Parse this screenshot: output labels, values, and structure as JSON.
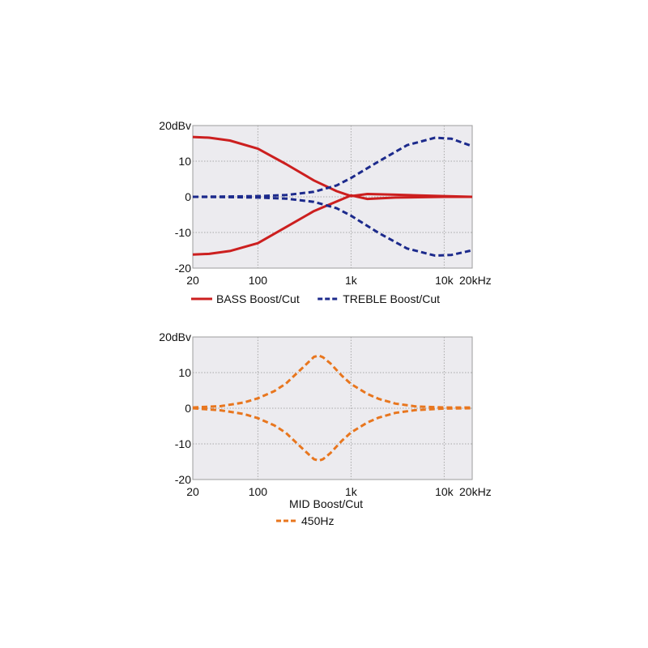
{
  "colors": {
    "plot_background": "#ecebef",
    "grid": "#a9a9a9",
    "frame": "#9c9c9c",
    "bass": "#cc1f1f",
    "treble": "#1c2a8c",
    "mid": "#e8761e"
  },
  "chart_data": [
    {
      "type": "line",
      "xscale": "log",
      "xlim": [
        20,
        20000
      ],
      "ylim": [
        -20,
        20
      ],
      "grid": true,
      "legend_position": "bottom",
      "x_ticks": [
        20,
        100,
        1000,
        10000,
        20000
      ],
      "x_tick_labels": [
        "20",
        "100",
        "1k",
        "10k",
        "20kHz"
      ],
      "y_ticks": [
        20,
        10,
        0,
        -10,
        -20
      ],
      "y_tick_labels": [
        "20dBv",
        "10",
        "0",
        "-10",
        "-20"
      ],
      "legend": [
        {
          "label": "BASS Boost/Cut",
          "color": "#cc1f1f",
          "style": "solid"
        },
        {
          "label": "TREBLE Boost/Cut",
          "color": "#1c2a8c",
          "style": "dashed"
        }
      ],
      "series": [
        {
          "group": "BASS Boost/Cut",
          "color": "#cc1f1f",
          "style": "solid",
          "x": [
            20,
            30,
            50,
            100,
            200,
            400,
            700,
            1000,
            1500,
            3000,
            10000,
            20000
          ],
          "y": [
            16.8,
            16.6,
            15.8,
            13.5,
            9.2,
            4.6,
            1.6,
            0.2,
            0.8,
            0.6,
            0.2,
            0
          ]
        },
        {
          "group": "BASS Boost/Cut",
          "color": "#cc1f1f",
          "style": "solid",
          "x": [
            20,
            30,
            50,
            100,
            200,
            400,
            700,
            1000,
            1500,
            3000,
            10000,
            20000
          ],
          "y": [
            -16.2,
            -16.0,
            -15.2,
            -13.0,
            -8.5,
            -4.0,
            -1.3,
            0.4,
            -0.6,
            -0.2,
            0,
            0
          ]
        },
        {
          "group": "TREBLE Boost/Cut",
          "color": "#1c2a8c",
          "style": "dashed",
          "x": [
            20,
            50,
            100,
            200,
            400,
            700,
            1000,
            2000,
            4000,
            8000,
            12000,
            20000
          ],
          "y": [
            0,
            0.1,
            0.2,
            0.5,
            1.4,
            3.2,
            5.3,
            10.0,
            14.5,
            16.6,
            16.3,
            14.2
          ]
        },
        {
          "group": "TREBLE Boost/Cut",
          "color": "#1c2a8c",
          "style": "dashed",
          "x": [
            20,
            50,
            100,
            200,
            400,
            700,
            1000,
            2000,
            4000,
            8000,
            12000,
            20000
          ],
          "y": [
            0,
            -0.1,
            -0.2,
            -0.5,
            -1.4,
            -3.2,
            -5.3,
            -10.2,
            -14.5,
            -16.5,
            -16.3,
            -15.0
          ]
        }
      ]
    },
    {
      "type": "line",
      "xscale": "log",
      "xlim": [
        20,
        20000
      ],
      "ylim": [
        -20,
        20
      ],
      "grid": true,
      "legend_position": "bottom",
      "x_ticks": [
        20,
        100,
        1000,
        10000,
        20000
      ],
      "x_tick_labels": [
        "20",
        "100",
        "1k",
        "10k",
        "20kHz"
      ],
      "y_ticks": [
        20,
        10,
        0,
        -10,
        -20
      ],
      "y_tick_labels": [
        "20dBv",
        "10",
        "0",
        "-10",
        "-20"
      ],
      "legend_title": "MID Boost/Cut",
      "legend": [
        {
          "label": "450Hz",
          "color": "#e8761e",
          "style": "dashed"
        }
      ],
      "series": [
        {
          "group": "450Hz",
          "color": "#e8761e",
          "style": "dashed",
          "x": [
            20,
            40,
            70,
            100,
            150,
            200,
            300,
            400,
            450,
            500,
            600,
            800,
            1000,
            1500,
            2000,
            3000,
            5000,
            10000,
            20000
          ],
          "y": [
            0.2,
            0.6,
            1.6,
            2.8,
            4.8,
            6.9,
            11.3,
            14.4,
            14.8,
            14.3,
            12.6,
            9.1,
            6.8,
            4.0,
            2.6,
            1.3,
            0.5,
            0.2,
            0.2
          ]
        },
        {
          "group": "450Hz",
          "color": "#e8761e",
          "style": "dashed",
          "x": [
            20,
            40,
            70,
            100,
            150,
            200,
            300,
            400,
            450,
            500,
            600,
            800,
            1000,
            1500,
            2000,
            3000,
            5000,
            10000,
            20000
          ],
          "y": [
            0,
            -0.6,
            -1.6,
            -2.8,
            -4.8,
            -6.9,
            -11.3,
            -14.3,
            -14.7,
            -14.3,
            -12.6,
            -9.1,
            -6.8,
            -4.0,
            -2.6,
            -1.3,
            -0.5,
            -0.1,
            0
          ]
        }
      ]
    }
  ]
}
